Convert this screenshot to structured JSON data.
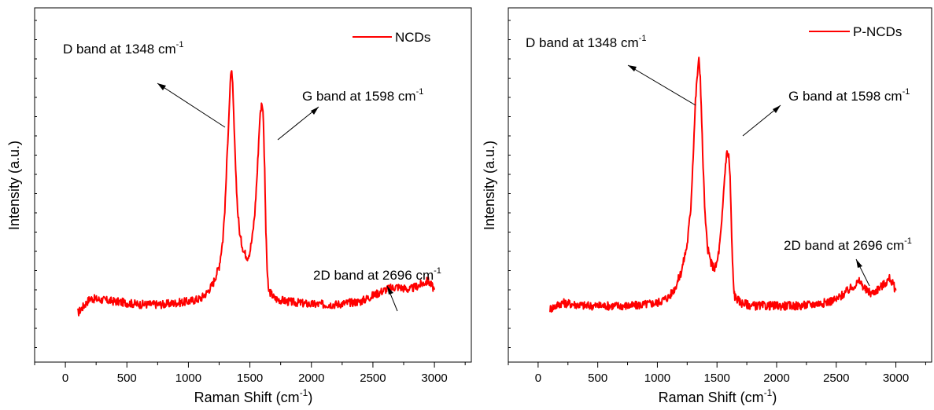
{
  "chart_data": [
    {
      "type": "line",
      "xlabel": "Raman Shift (cm",
      "xlabel_sup": "-1",
      "xlabel_end": ")",
      "ylabel": "Intensity (a.u.)",
      "xlim": [
        -250,
        3300
      ],
      "ylim": [
        0,
        1.0
      ],
      "x_ticks": [
        "0",
        "500",
        "1000",
        "1500",
        "2000",
        "2500",
        "3000"
      ],
      "x_tick_values": [
        0,
        500,
        1000,
        1500,
        2000,
        2500,
        3000
      ],
      "grid": false,
      "legend_position": "top-right",
      "series": [
        {
          "name": "NCDs",
          "color": "#ff0000",
          "x": [
            100,
            200,
            400,
            600,
            800,
            1000,
            1100,
            1150,
            1200,
            1250,
            1280,
            1300,
            1320,
            1340,
            1348,
            1360,
            1380,
            1400,
            1420,
            1450,
            1480,
            1500,
            1520,
            1540,
            1560,
            1580,
            1598,
            1610,
            1620,
            1630,
            1640,
            1650,
            1700,
            1800,
            2000,
            2200,
            2400,
            2500,
            2600,
            2696,
            2800,
            2900,
            2950,
            3000
          ],
          "y": [
            0.07,
            0.12,
            0.11,
            0.1,
            0.1,
            0.11,
            0.12,
            0.14,
            0.17,
            0.23,
            0.32,
            0.45,
            0.66,
            0.84,
            0.9,
            0.84,
            0.6,
            0.42,
            0.33,
            0.28,
            0.26,
            0.28,
            0.33,
            0.41,
            0.55,
            0.73,
            0.79,
            0.73,
            0.55,
            0.35,
            0.22,
            0.15,
            0.12,
            0.11,
            0.1,
            0.1,
            0.11,
            0.13,
            0.15,
            0.16,
            0.15,
            0.17,
            0.18,
            0.15
          ]
        }
      ],
      "annotations": [
        {
          "text": "D band at 1348 cm",
          "sup": "-1"
        },
        {
          "text": "G band at 1598 cm",
          "sup": "-1"
        },
        {
          "text": "2D band at 2696 cm",
          "sup": "-1"
        }
      ]
    },
    {
      "type": "line",
      "xlabel": "Raman Shift (cm",
      "xlabel_sup": "-1",
      "xlabel_end": ")",
      "ylabel": "Intensity (a.u.)",
      "xlim": [
        -250,
        3300
      ],
      "ylim": [
        0,
        1.0
      ],
      "x_ticks": [
        "0",
        "500",
        "1000",
        "1500",
        "2000",
        "2500",
        "3000"
      ],
      "x_tick_values": [
        0,
        500,
        1000,
        1500,
        2000,
        2500,
        3000
      ],
      "grid": false,
      "legend_position": "top-right",
      "series": [
        {
          "name": "P-NCDs",
          "color": "#ff0000",
          "x": [
            100,
            200,
            400,
            600,
            800,
            1000,
            1100,
            1150,
            1200,
            1250,
            1280,
            1300,
            1320,
            1340,
            1348,
            1360,
            1380,
            1400,
            1420,
            1450,
            1480,
            1500,
            1520,
            1540,
            1560,
            1580,
            1598,
            1610,
            1620,
            1630,
            1640,
            1650,
            1700,
            1800,
            2000,
            2200,
            2400,
            2500,
            2600,
            2696,
            2750,
            2800,
            2900,
            2950,
            3000
          ],
          "y": [
            0.12,
            0.14,
            0.13,
            0.13,
            0.13,
            0.14,
            0.16,
            0.19,
            0.24,
            0.33,
            0.45,
            0.62,
            0.8,
            0.91,
            0.93,
            0.88,
            0.63,
            0.42,
            0.32,
            0.27,
            0.25,
            0.27,
            0.32,
            0.4,
            0.53,
            0.63,
            0.62,
            0.55,
            0.4,
            0.27,
            0.19,
            0.16,
            0.14,
            0.13,
            0.13,
            0.13,
            0.14,
            0.15,
            0.18,
            0.21,
            0.18,
            0.17,
            0.2,
            0.22,
            0.18
          ]
        }
      ],
      "annotations": [
        {
          "text": "D band at 1348 cm",
          "sup": "-1"
        },
        {
          "text": "G band at 1598 cm",
          "sup": "-1"
        },
        {
          "text": "2D band at 2696 cm",
          "sup": "-1"
        }
      ]
    }
  ]
}
